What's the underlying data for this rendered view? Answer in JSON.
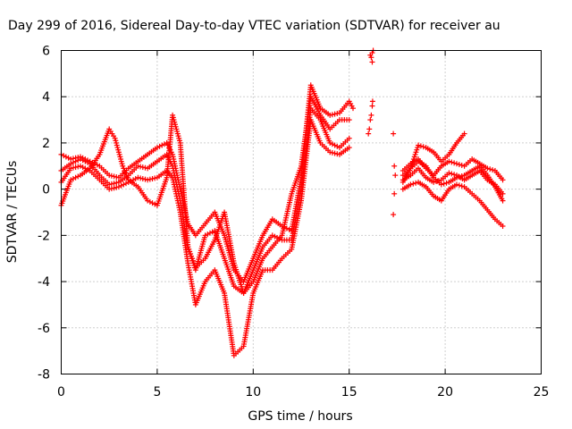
{
  "chart_data": {
    "type": "scatter",
    "title": "Day 299 of 2016, Sidereal Day-to-day VTEC variation (SDTVAR) for receiver au",
    "xlabel": "GPS time / hours",
    "ylabel": "SDTVAR / TECUs",
    "xlim": [
      0,
      25
    ],
    "ylim": [
      -8,
      6
    ],
    "xticks": [
      "0",
      "5",
      "10",
      "15",
      "20",
      "25"
    ],
    "yticks": [
      "-8",
      "-6",
      "-4",
      "-2",
      "0",
      "2",
      "4",
      "6"
    ],
    "grid": true,
    "marker": "plus",
    "color": "#ff0000",
    "series": [
      {
        "x": [
          0,
          0.5,
          1,
          1.5,
          2,
          2.5,
          3,
          3.5,
          4,
          4.5,
          5,
          5.5,
          5.8,
          6.2,
          6.6,
          7,
          7.5,
          8,
          8.5,
          9,
          9.5,
          10,
          10.5,
          11,
          11.5,
          12,
          12.5,
          13,
          13.5,
          14,
          14.5,
          15,
          15.2
        ],
        "y": [
          1.5,
          1.3,
          1.4,
          1.2,
          1.0,
          0.6,
          0.5,
          0.9,
          1.2,
          1.5,
          1.8,
          2.0,
          1.5,
          0.0,
          -1.5,
          -2.0,
          -1.5,
          -1.0,
          -2.0,
          -3.5,
          -4.0,
          -3.0,
          -2.0,
          -1.3,
          -1.6,
          -1.8,
          0.5,
          4.5,
          3.5,
          3.2,
          3.3,
          3.8,
          3.5
        ]
      },
      {
        "x": [
          0,
          0.5,
          1,
          1.5,
          2,
          2.5,
          3,
          3.5,
          4,
          4.5,
          5,
          5.5,
          5.8,
          6.2,
          6.6,
          7,
          7.5,
          8,
          8.5,
          9,
          9.5,
          10,
          10.5,
          11,
          11.5,
          12,
          12.5,
          13,
          13.5,
          14,
          14.5,
          15
        ],
        "y": [
          0.8,
          1.1,
          1.3,
          1.1,
          0.6,
          0.2,
          0.3,
          0.6,
          1.0,
          0.9,
          1.2,
          1.5,
          1.0,
          -0.5,
          -2.5,
          -3.5,
          -2.0,
          -1.8,
          -3.0,
          -4.2,
          -4.5,
          -3.5,
          -2.5,
          -2.0,
          -2.2,
          -2.2,
          0.0,
          3.5,
          3.0,
          2.0,
          1.8,
          2.2
        ]
      },
      {
        "x": [
          0,
          0.5,
          1,
          1.5,
          2,
          2.5,
          3,
          3.5,
          4,
          4.5,
          5,
          5.5,
          5.8,
          6.2,
          6.6,
          7,
          7.5,
          8,
          8.5,
          9,
          9.5,
          10,
          10.5,
          11,
          11.5,
          12,
          12.5,
          13,
          13.5,
          14,
          14.5,
          15
        ],
        "y": [
          0.3,
          0.9,
          1.0,
          0.8,
          0.4,
          0.0,
          0.1,
          0.3,
          0.5,
          0.4,
          0.5,
          0.8,
          0.5,
          -1.0,
          -3.2,
          -5.0,
          -4.0,
          -3.5,
          -4.5,
          -7.2,
          -6.8,
          -4.5,
          -3.5,
          -3.5,
          -3.0,
          -2.6,
          -0.5,
          3.0,
          2.0,
          1.6,
          1.5,
          1.8
        ]
      },
      {
        "x": [
          0,
          0.5,
          1,
          1.5,
          2,
          2.5,
          2.8,
          3.2,
          3.5,
          4,
          4.5,
          5,
          5.5,
          5.8,
          6.2,
          6.6,
          7,
          7.5,
          8,
          8.5,
          9,
          9.5,
          10,
          10.5,
          11,
          11.5,
          12,
          12.5,
          13,
          13.5,
          14,
          14.5,
          15
        ],
        "y": [
          -0.7,
          0.4,
          0.6,
          0.9,
          1.5,
          2.6,
          2.2,
          1.0,
          0.4,
          0.1,
          -0.5,
          -0.7,
          0.5,
          3.2,
          2.0,
          -2.5,
          -3.4,
          -3.0,
          -2.2,
          -1.0,
          -3.2,
          -4.5,
          -4.0,
          -3.0,
          -2.5,
          -2.0,
          -0.2,
          1.0,
          4.0,
          3.2,
          2.6,
          3.0,
          3.0
        ]
      },
      {
        "x": [
          16.0,
          16.05,
          16.1,
          16.15,
          16.2,
          16.22,
          16.2,
          16.15,
          16.1,
          16.2,
          16.25,
          17.3,
          17.35,
          17.4,
          17.35,
          17.3
        ],
        "y": [
          2.4,
          2.6,
          3.0,
          3.2,
          3.6,
          3.8,
          5.5,
          5.7,
          5.8,
          5.9,
          6.0,
          2.4,
          1.0,
          0.6,
          -0.2,
          -1.1
        ]
      },
      {
        "x": [
          17.8,
          18.2,
          18.6,
          19.0,
          19.4,
          19.8,
          20.2,
          20.6,
          21.0
        ],
        "y": [
          0.3,
          0.9,
          1.9,
          1.8,
          1.6,
          1.2,
          1.5,
          2.0,
          2.4
        ]
      },
      {
        "x": [
          17.8,
          18.2,
          18.6,
          19.0,
          19.4,
          19.8,
          20.2,
          20.6,
          21.0,
          21.4,
          21.8,
          22.2,
          22.6,
          23.0
        ],
        "y": [
          0.8,
          1.1,
          1.3,
          0.9,
          0.6,
          1.0,
          1.2,
          1.1,
          1.0,
          1.3,
          1.1,
          0.9,
          0.8,
          0.4
        ]
      },
      {
        "x": [
          17.8,
          18.2,
          18.6,
          19.0,
          19.4,
          19.8,
          20.2,
          20.6,
          21.0,
          21.4,
          21.8,
          22.2,
          22.6,
          23.0
        ],
        "y": [
          0.4,
          0.6,
          0.9,
          0.5,
          0.3,
          0.4,
          0.7,
          0.6,
          0.4,
          0.6,
          0.8,
          0.4,
          0.2,
          -0.2
        ]
      },
      {
        "x": [
          17.8,
          18.2,
          18.6,
          19.0,
          19.4,
          19.8,
          20.2,
          20.6,
          21.0,
          21.4,
          21.8,
          22.2,
          22.6,
          23.0
        ],
        "y": [
          0.0,
          0.2,
          0.3,
          0.1,
          -0.3,
          -0.5,
          0.0,
          0.2,
          0.1,
          -0.2,
          -0.5,
          -0.9,
          -1.3,
          -1.6
        ]
      },
      {
        "x": [
          17.8,
          18.2,
          18.6,
          19.0,
          19.4,
          19.8,
          20.2,
          20.6,
          21.0,
          21.4,
          21.8,
          22.2,
          22.6,
          23.0
        ],
        "y": [
          0.6,
          0.9,
          1.2,
          1.0,
          0.5,
          0.2,
          0.3,
          0.5,
          0.6,
          0.8,
          1.0,
          0.6,
          0.1,
          -0.5
        ]
      }
    ]
  }
}
